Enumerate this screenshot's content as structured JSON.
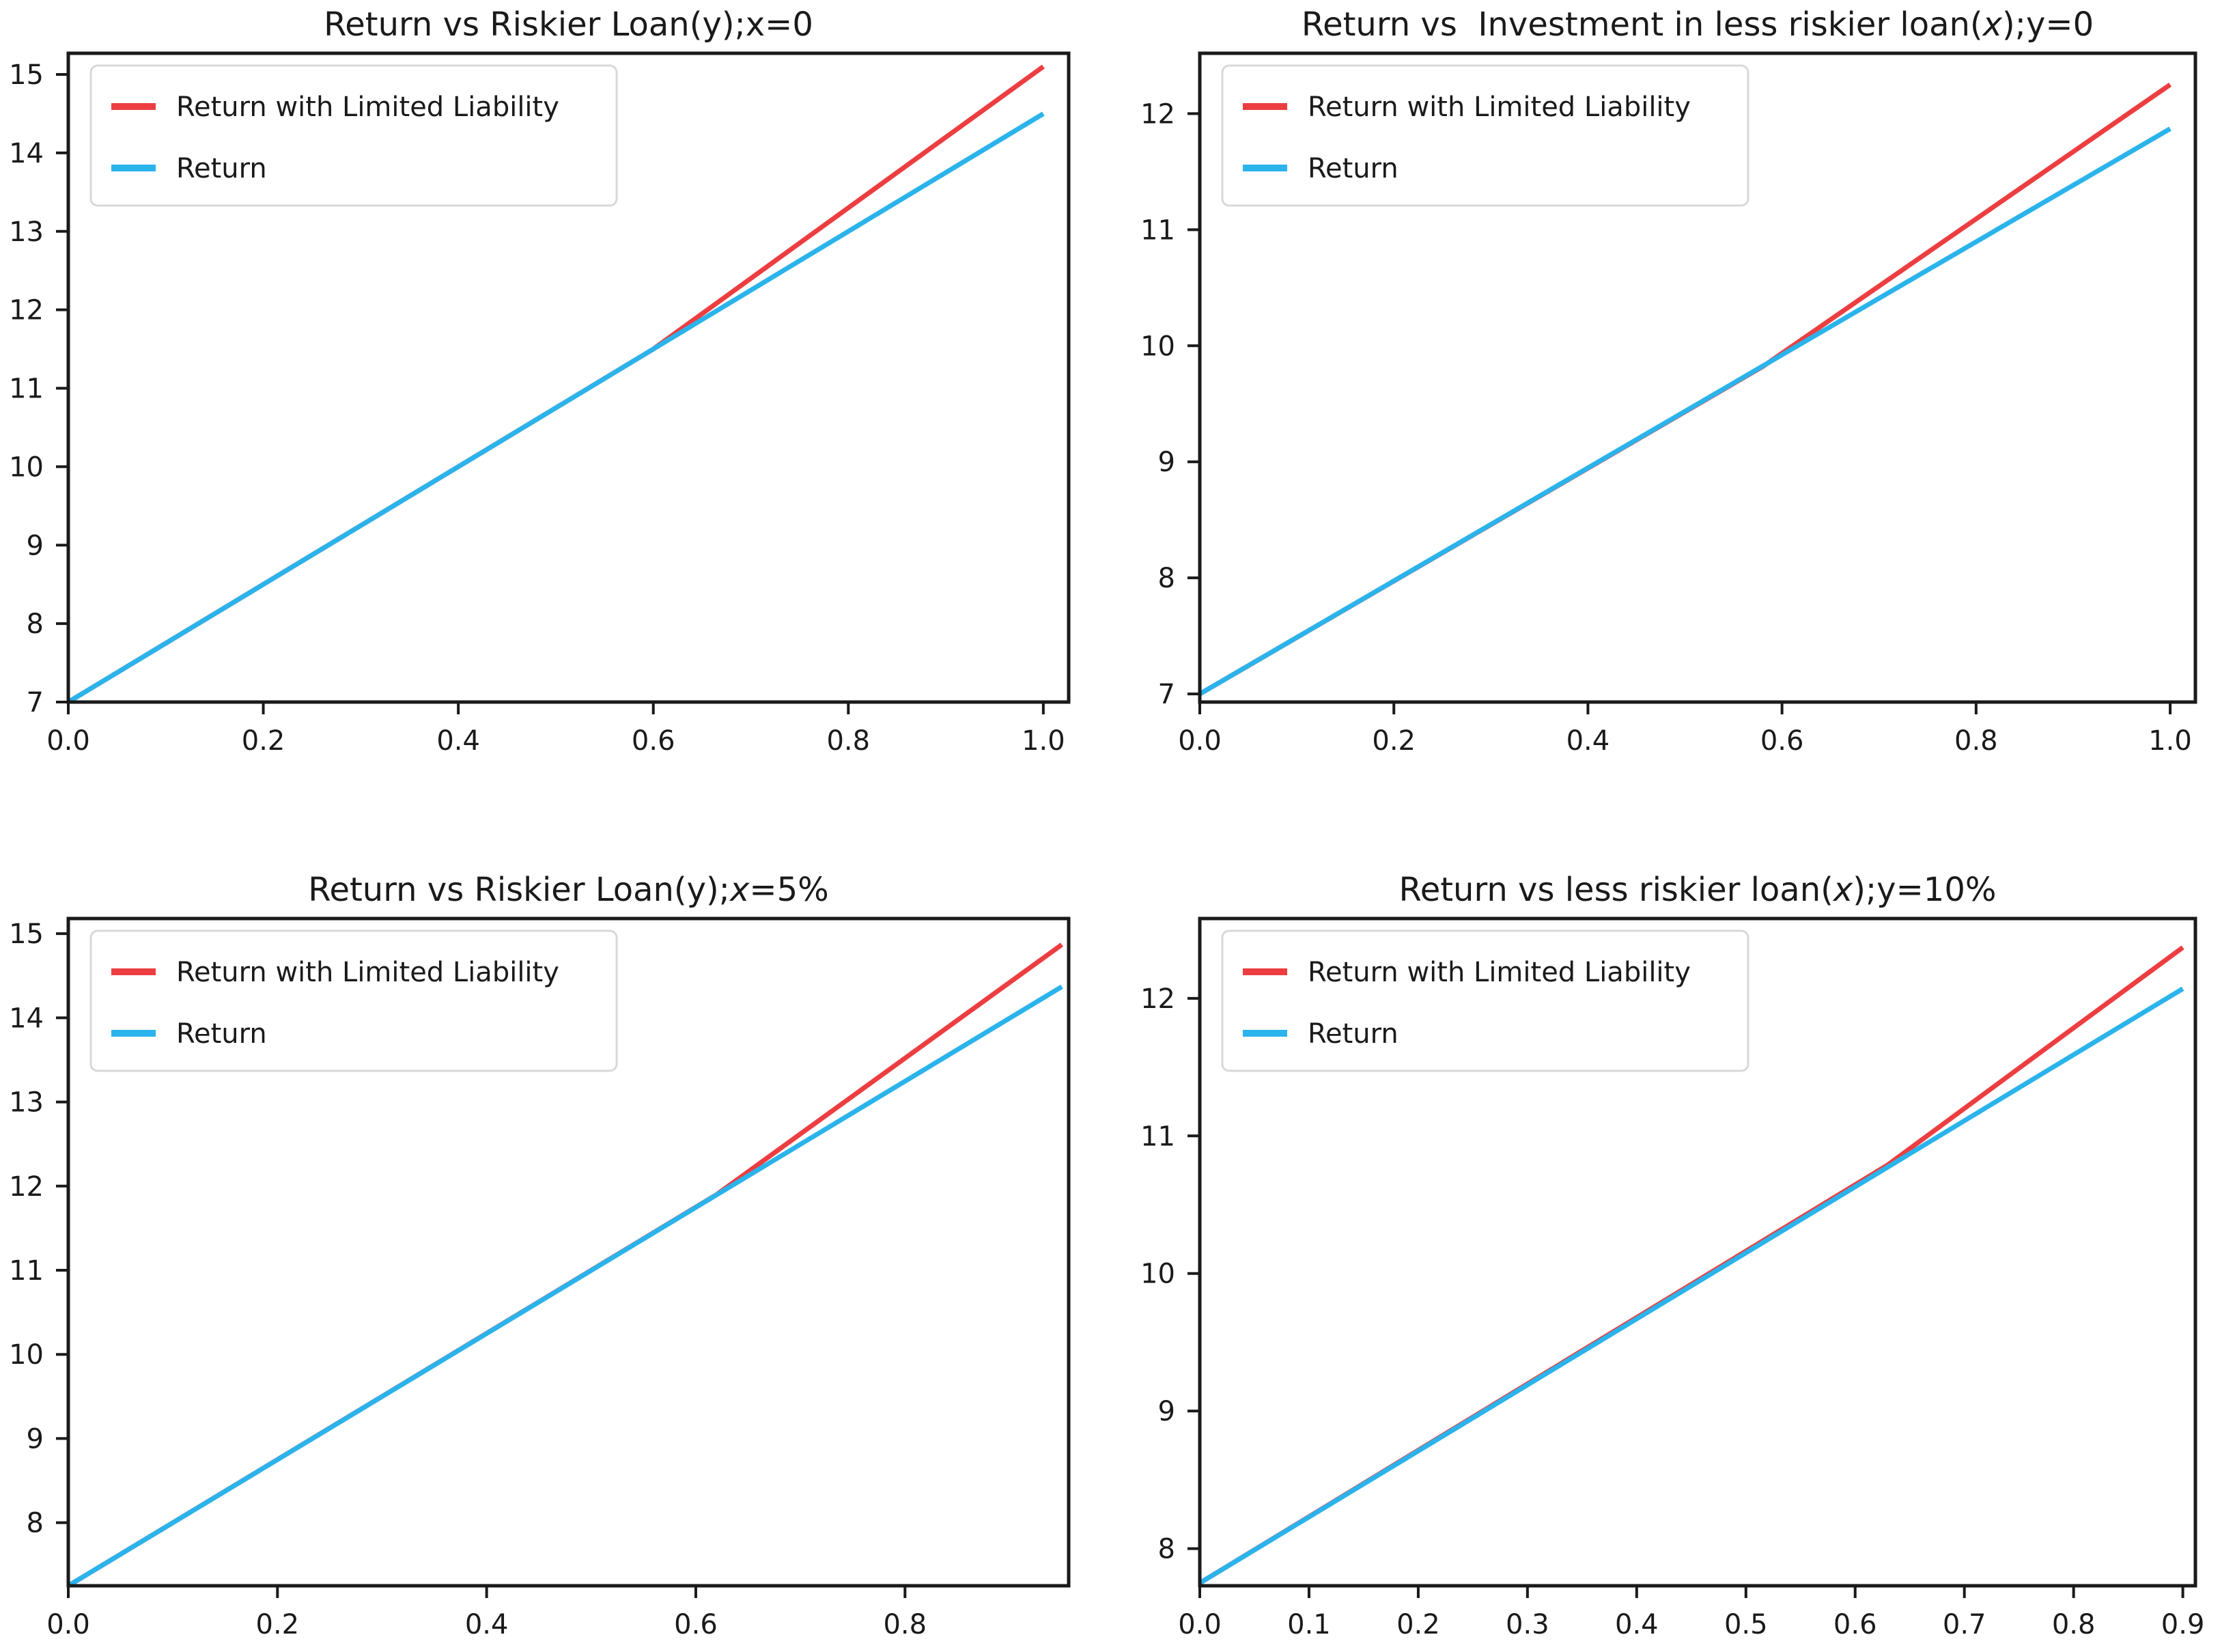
{
  "figure": {
    "background": "#ffffff",
    "axis_color": "#1a1a1a",
    "tick_label_color": "#1a1a1a",
    "title_color": "#1a1a1a",
    "series_colors": {
      "limited": "#ec3e41",
      "plain": "#2bb3eb"
    },
    "legend": {
      "background": "#ffffff",
      "border_color": "#d8d8d8",
      "text_color": "#1a1a1a",
      "position": "upper left",
      "labels": [
        "Return with Limited Liability",
        "Return"
      ]
    }
  },
  "chart_data": [
    {
      "id": "return-vs-riskier-loan-x0",
      "type": "line",
      "title": "Return vs Riskier Loan(y);x=0",
      "title_parts": [
        {
          "text": "Return vs Riskier Loan(y);x=0",
          "italic": false
        }
      ],
      "xlabel": "",
      "ylabel": "",
      "grid": false,
      "legend_position": "upper left",
      "xlim": [
        0,
        1.026
      ],
      "ylim": [
        7.0,
        15.27
      ],
      "xticks": [
        0.0,
        0.2,
        0.4,
        0.6,
        0.8,
        1.0
      ],
      "xtick_labels": [
        "0.0",
        "0.2",
        "0.4",
        "0.6",
        "0.8",
        "1.0"
      ],
      "yticks": [
        7,
        8,
        9,
        10,
        11,
        12,
        13,
        14,
        15
      ],
      "ytick_labels": [
        "7",
        "8",
        "9",
        "10",
        "11",
        "12",
        "13",
        "14",
        "15"
      ],
      "series": [
        {
          "name": "Return with Limited Liability",
          "color_key": "limited",
          "points": [
            [
              0.0,
              7.0
            ],
            [
              0.6,
              11.5
            ],
            [
              1.0,
              15.1
            ]
          ]
        },
        {
          "name": "Return",
          "color_key": "plain",
          "points": [
            [
              0.0,
              7.0
            ],
            [
              1.0,
              14.5
            ]
          ]
        }
      ]
    },
    {
      "id": "return-vs-less-risky-investment-y0",
      "type": "line",
      "title": "Return vs  Investment in less riskier loan(x);y=0",
      "title_parts": [
        {
          "text": "Return vs  Investment in less riskier loan(",
          "italic": false
        },
        {
          "text": "x",
          "italic": true
        },
        {
          "text": ");y=0",
          "italic": false
        }
      ],
      "xlabel": "",
      "ylabel": "",
      "grid": false,
      "legend_position": "upper left",
      "xlim": [
        0,
        1.026
      ],
      "ylim": [
        6.93,
        12.52
      ],
      "xticks": [
        0.0,
        0.2,
        0.4,
        0.6,
        0.8,
        1.0
      ],
      "xtick_labels": [
        "0.0",
        "0.2",
        "0.4",
        "0.6",
        "0.8",
        "1.0"
      ],
      "yticks": [
        7,
        8,
        9,
        10,
        11,
        12
      ],
      "ytick_labels": [
        "7",
        "8",
        "9",
        "10",
        "11",
        "12"
      ],
      "series": [
        {
          "name": "Return with Limited Liability",
          "color_key": "limited",
          "points": [
            [
              0.0,
              7.0
            ],
            [
              0.58,
              9.82
            ],
            [
              1.0,
              12.25
            ]
          ]
        },
        {
          "name": "Return",
          "color_key": "plain",
          "points": [
            [
              0.0,
              7.0
            ],
            [
              1.0,
              11.87
            ]
          ]
        }
      ]
    },
    {
      "id": "return-vs-riskier-loan-x5pct",
      "type": "line",
      "title": "Return vs Riskier Loan(y);x=5%",
      "title_parts": [
        {
          "text": "Return vs Riskier Loan(y);",
          "italic": false
        },
        {
          "text": "x",
          "italic": true
        },
        {
          "text": "=5%",
          "italic": false
        }
      ],
      "xlabel": "",
      "ylabel": "",
      "grid": false,
      "legend_position": "upper left",
      "xlim": [
        0,
        0.9565
      ],
      "ylim": [
        7.25,
        15.18
      ],
      "xticks": [
        0.0,
        0.2,
        0.4,
        0.6,
        0.8
      ],
      "xtick_labels": [
        "0.0",
        "0.2",
        "0.4",
        "0.6",
        "0.8"
      ],
      "yticks": [
        8,
        9,
        10,
        11,
        12,
        13,
        14,
        15
      ],
      "ytick_labels": [
        "8",
        "9",
        "10",
        "11",
        "12",
        "13",
        "14",
        "15"
      ],
      "series": [
        {
          "name": "Return with Limited Liability",
          "color_key": "limited",
          "points": [
            [
              0.0,
              7.25
            ],
            [
              0.62,
              11.9
            ],
            [
              0.95,
              14.87
            ]
          ]
        },
        {
          "name": "Return",
          "color_key": "plain",
          "points": [
            [
              0.0,
              7.25
            ],
            [
              0.95,
              14.37
            ]
          ]
        }
      ]
    },
    {
      "id": "return-vs-less-riskier-loan-y10pct",
      "type": "line",
      "title": "Return vs less riskier loan(x);y=10%",
      "title_parts": [
        {
          "text": "Return vs less riskier loan(",
          "italic": false
        },
        {
          "text": "x",
          "italic": true
        },
        {
          "text": ");y=10%",
          "italic": false
        }
      ],
      "xlabel": "",
      "ylabel": "",
      "grid": false,
      "legend_position": "upper left",
      "xlim": [
        0,
        0.9115
      ],
      "ylim": [
        7.73,
        12.58
      ],
      "xticks": [
        0.0,
        0.1,
        0.2,
        0.3,
        0.4,
        0.5,
        0.6,
        0.7,
        0.8,
        0.9
      ],
      "xtick_labels": [
        "0.0",
        "0.1",
        "0.2",
        "0.3",
        "0.4",
        "0.5",
        "0.6",
        "0.7",
        "0.8",
        "0.9"
      ],
      "yticks": [
        8,
        9,
        10,
        11,
        12
      ],
      "ytick_labels": [
        "8",
        "9",
        "10",
        "11",
        "12"
      ],
      "series": [
        {
          "name": "Return with Limited Liability",
          "color_key": "limited",
          "points": [
            [
              0.0,
              7.75
            ],
            [
              0.63,
              10.79
            ],
            [
              0.9,
              12.37
            ]
          ]
        },
        {
          "name": "Return",
          "color_key": "plain",
          "points": [
            [
              0.0,
              7.75
            ],
            [
              0.9,
              12.07
            ]
          ]
        }
      ]
    }
  ]
}
